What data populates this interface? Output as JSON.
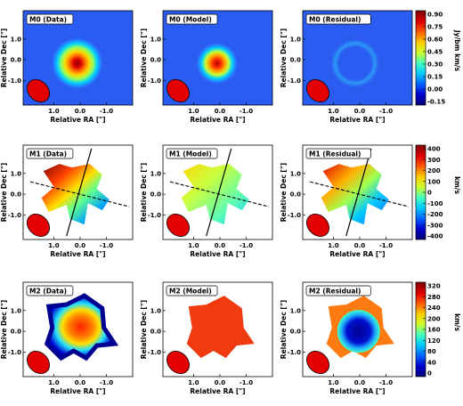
{
  "colors": {
    "map": [
      "#00007a",
      "#0000cd",
      "#0060ff",
      "#00c8ff",
      "#40ffc0",
      "#c8ff30",
      "#ffd000",
      "#ff6000",
      "#e00000",
      "#800000"
    ],
    "beam": "#e40000",
    "background_blue": "#2a5cf2"
  },
  "axes": {
    "xlabel": "Relative RA [\"]",
    "ylabel": "Relative Dec [\"]",
    "xticks": [
      "1.0",
      "0.0",
      "-1.0"
    ],
    "yticks": [
      "1.0",
      "0.0",
      "-1.0"
    ]
  },
  "rows": [
    {
      "moment": "M0",
      "panels": [
        "M0 (Data)",
        "M0 (Model)",
        "M0 (Residual)"
      ],
      "colorbar": {
        "label": "Jy/bm km/s",
        "ticks": [
          "0.90",
          "0.75",
          "0.60",
          "0.45",
          "0.30",
          "0.15",
          "0.00",
          "-0.15"
        ]
      }
    },
    {
      "moment": "M1",
      "panels": [
        "M1 (Data)",
        "M1 (Model)",
        "M1 (Residual)"
      ],
      "colorbar": {
        "label": "km/s",
        "ticks": [
          "400",
          "300",
          "200",
          "100",
          "0",
          "-100",
          "-200",
          "-300",
          "-400"
        ]
      }
    },
    {
      "moment": "M2",
      "panels": [
        "M2 (Data)",
        "M2 (Model)",
        "M2 (Residual)"
      ],
      "colorbar": {
        "label": "km/s",
        "ticks": [
          "320",
          "280",
          "240",
          "200",
          "160",
          "120",
          "80",
          "40",
          "0"
        ]
      }
    }
  ]
}
